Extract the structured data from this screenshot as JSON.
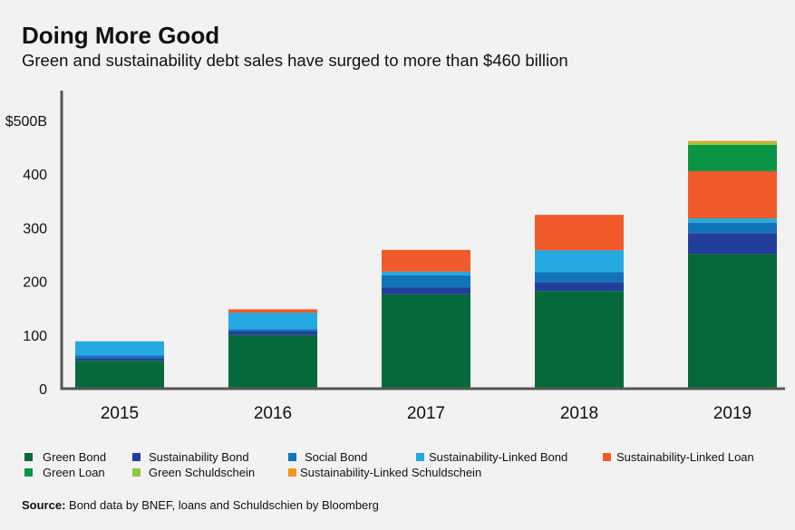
{
  "title": "Doing More Good",
  "subtitle": "Green and sustainability debt sales have surged to more than $460 billion",
  "source_label": "Source:",
  "source_text": " Bond data by BNEF, loans and Schuldschien by Bloomberg",
  "chart_data": {
    "type": "bar",
    "stacked": true,
    "categories": [
      "2015",
      "2016",
      "2017",
      "2018",
      "2019"
    ],
    "ylim": [
      0,
      500
    ],
    "yticks": [
      0,
      100,
      200,
      300,
      400,
      500
    ],
    "ytick_labels": [
      "0",
      "100",
      "200",
      "300",
      "400",
      "$500B"
    ],
    "grid": false,
    "legend_position": "bottom",
    "series": [
      {
        "name": "Green Bond",
        "color": "#06693a",
        "values": [
          52,
          100,
          176,
          182,
          251
        ]
      },
      {
        "name": "Sustainability Bond",
        "color": "#213f9a",
        "values": [
          4.5,
          7.4,
          12.4,
          17,
          39
        ]
      },
      {
        "name": "Social Bond",
        "color": "#1174bb",
        "values": [
          5.7,
          3.4,
          23,
          18.6,
          19.6
        ]
      },
      {
        "name": "Sustainability-Linked Bond",
        "color": "#25a9e1",
        "values": [
          26,
          31,
          6.8,
          40.5,
          7.9
        ]
      },
      {
        "name": "Sustainability-Linked Loan",
        "color": "#f15a2b",
        "values": [
          0,
          6.2,
          40.5,
          66,
          88
        ]
      },
      {
        "name": "Green Loan",
        "color": "#0b9444",
        "values": [
          0,
          0,
          0,
          0,
          49
        ]
      },
      {
        "name": "Green Schuldschein",
        "color": "#8cc63f",
        "values": [
          0,
          0,
          0,
          0,
          4.5
        ]
      },
      {
        "name": "Sustainability-Linked Schuldschein",
        "color": "#f7941d",
        "values": [
          0,
          0,
          0,
          0,
          2.8
        ]
      }
    ]
  }
}
